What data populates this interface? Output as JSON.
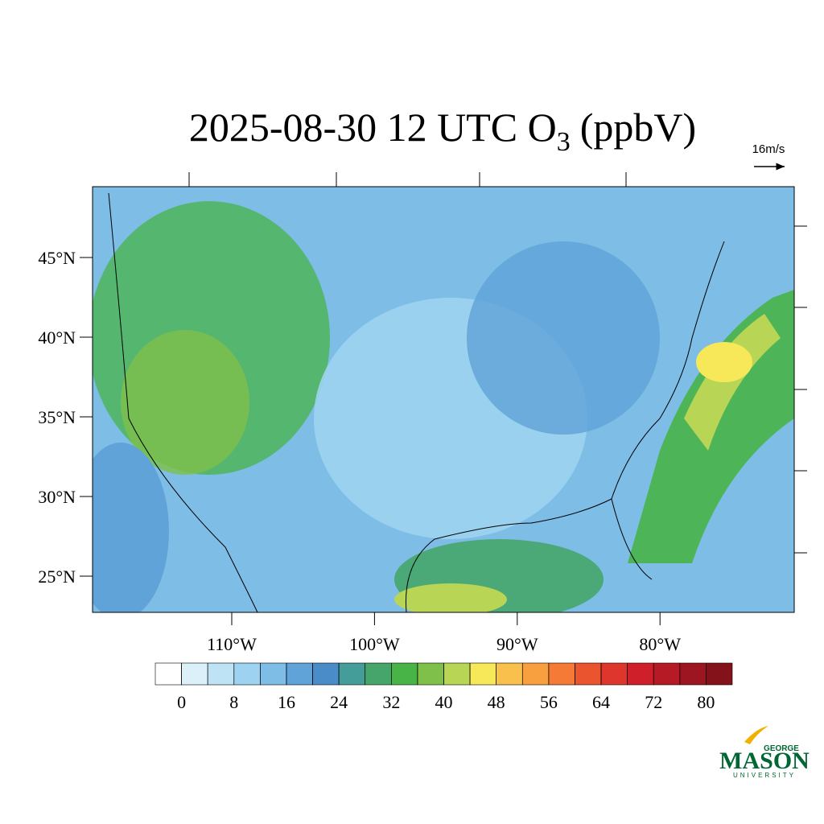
{
  "title": {
    "main": "2025-08-30 12 UTC O",
    "subscript": "3",
    "suffix": "(ppbV)"
  },
  "vector_reference": "16m/s",
  "latitude_ticks": [
    {
      "value": 45,
      "label": "45°N"
    },
    {
      "value": 40,
      "label": "40°N"
    },
    {
      "value": 35,
      "label": "35°N"
    },
    {
      "value": 30,
      "label": "30°N"
    },
    {
      "value": 25,
      "label": "25°N"
    }
  ],
  "longitude_ticks": [
    {
      "value": -110,
      "label": "110°W"
    },
    {
      "value": -100,
      "label": "100°W"
    },
    {
      "value": -90,
      "label": "90°W"
    },
    {
      "value": -80,
      "label": "80°W"
    }
  ],
  "colorbar": {
    "levels": [
      0,
      4,
      8,
      12,
      16,
      20,
      24,
      28,
      32,
      36,
      40,
      44,
      48,
      52,
      56,
      60,
      64,
      68,
      72,
      76,
      80
    ],
    "ticks": [
      0,
      8,
      16,
      24,
      32,
      40,
      48,
      56,
      64,
      72,
      80
    ],
    "colors": [
      "#ffffff",
      "#dcf0fa",
      "#bde3f5",
      "#9dd3f0",
      "#7dbde6",
      "#5fa3d8",
      "#4a8cc8",
      "#459d9a",
      "#46a56a",
      "#48b447",
      "#7ec04a",
      "#b9d556",
      "#f7e85a",
      "#f9c04c",
      "#f8a040",
      "#f47a35",
      "#ea5530",
      "#de352c",
      "#cf1f2a",
      "#b51a25",
      "#9c1520",
      "#84121b"
    ]
  },
  "logo": {
    "top": "GEORGE",
    "main": "MASON",
    "bottom": "UNIVERSITY"
  }
}
